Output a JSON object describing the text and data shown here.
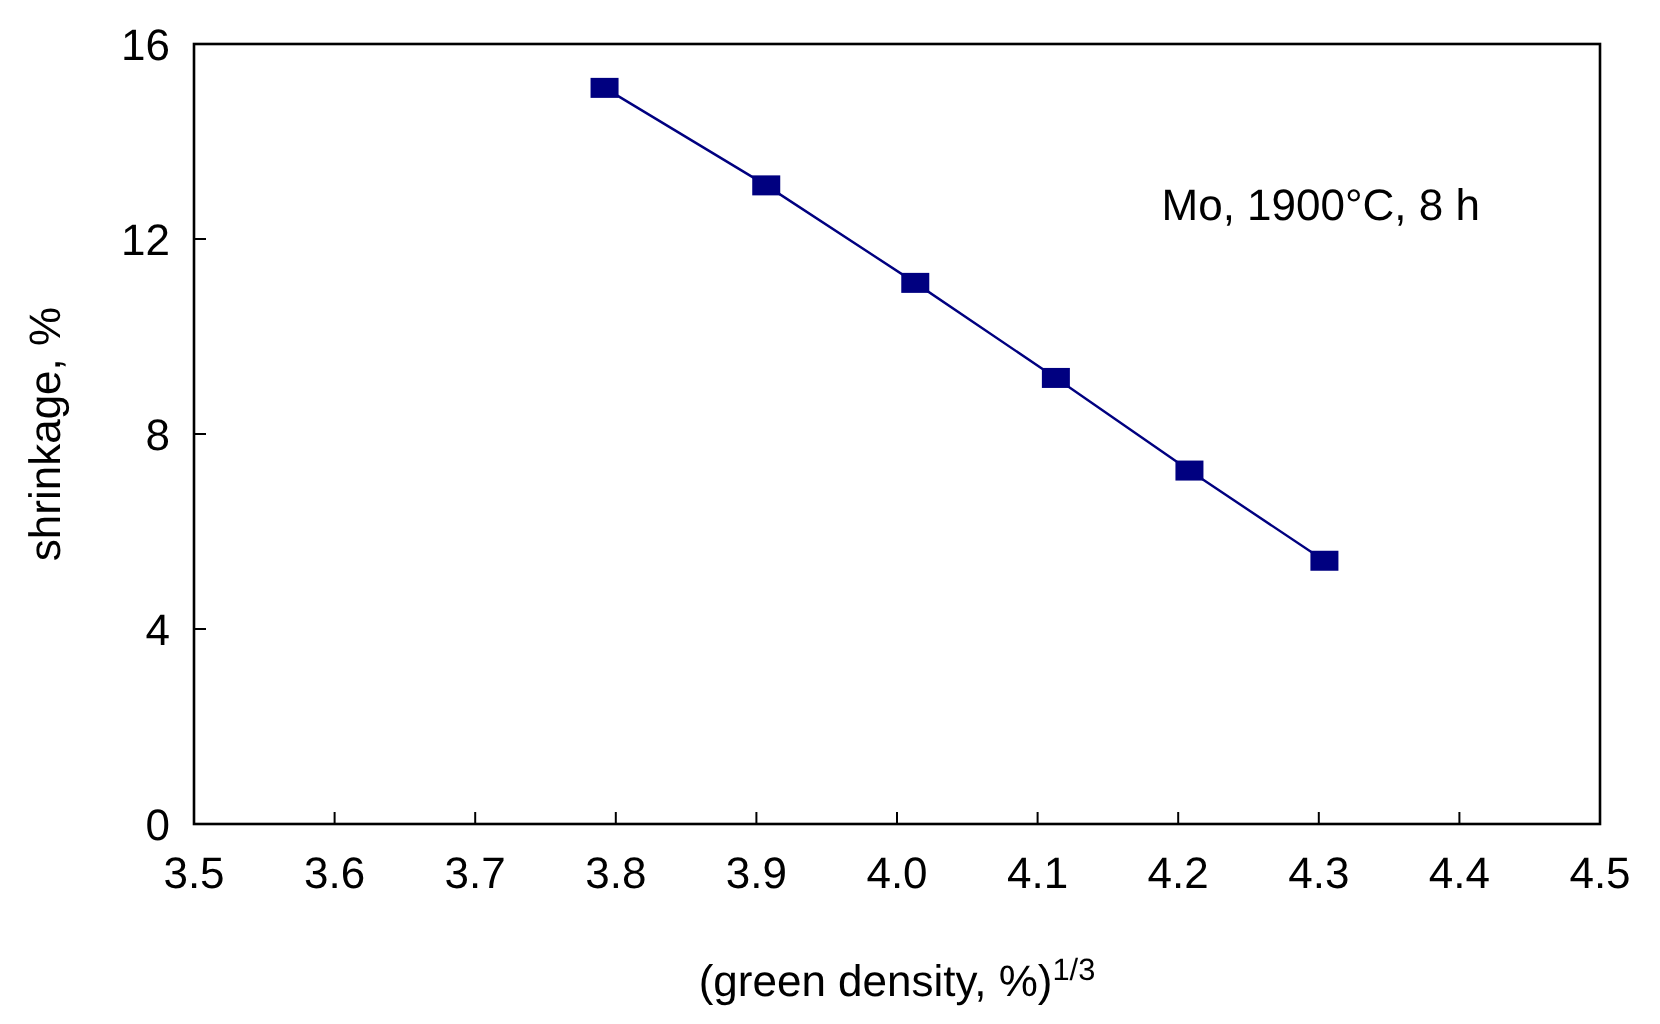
{
  "chart_data": {
    "type": "line",
    "xlabel": "(green density, %)$^{1/3}$",
    "ylabel": "shrinkage, %",
    "annotations": [
      "Mo, 1900°C, 8 h"
    ],
    "x": [
      3.792,
      3.907,
      4.013,
      4.113,
      4.208,
      4.304
    ],
    "series": [
      {
        "color": "#000080",
        "values": [
          15.1,
          13.1,
          11.1,
          9.15,
          7.25,
          5.4
        ]
      }
    ],
    "xlim": [
      3.5,
      4.5
    ],
    "xticks": [
      {
        "value": 3.5,
        "label": "3.5"
      },
      {
        "value": 3.6,
        "label": "3.6"
      },
      {
        "value": 3.7,
        "label": "3.7"
      },
      {
        "value": 3.8,
        "label": "3.8"
      },
      {
        "value": 3.9,
        "label": "3.9"
      },
      {
        "value": 4.0,
        "label": "4.0"
      },
      {
        "value": 4.1,
        "label": "4.1"
      },
      {
        "value": 4.2,
        "label": "4.2"
      },
      {
        "value": 4.3,
        "label": "4.3"
      },
      {
        "value": 4.4,
        "label": "4.4"
      },
      {
        "value": 4.5,
        "label": "4.5"
      }
    ],
    "ylim": [
      0,
      16
    ],
    "yticks": [
      0,
      4,
      8,
      12,
      16
    ],
    "marker": "square",
    "grid": false
  }
}
